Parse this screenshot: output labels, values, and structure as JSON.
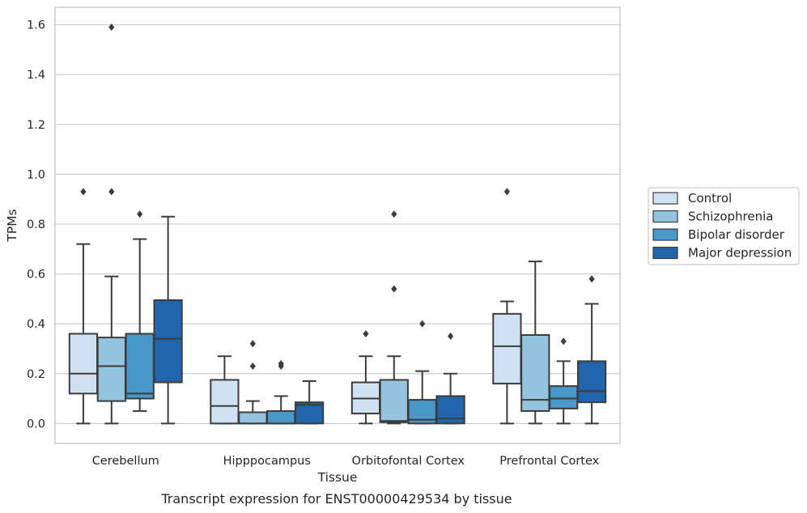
{
  "chart_data": {
    "type": "box",
    "xlabel": "Tissue",
    "ylabel": "TPMs",
    "caption": "Transcript expression for ENST00000429534 by tissue",
    "ylim": [
      -0.08,
      1.67
    ],
    "yticks": [
      "0.0",
      "0.2",
      "0.4",
      "0.6",
      "0.8",
      "1.0",
      "1.2",
      "1.4",
      "1.6"
    ],
    "grid": "horizontal",
    "legend_position": "right",
    "categories": [
      "Cerebellum",
      "Hipppocampus",
      "Orbitofontal Cortex",
      "Prefrontal Cortex"
    ],
    "series": [
      {
        "name": "Control",
        "color": "#d0e1f2",
        "boxes": [
          {
            "whislo": 0.0,
            "q1": 0.12,
            "med": 0.2,
            "q3": 0.36,
            "whishi": 0.72,
            "fliers": [
              0.93
            ]
          },
          {
            "whislo": 0.0,
            "q1": 0.0,
            "med": 0.07,
            "q3": 0.175,
            "whishi": 0.27,
            "fliers": []
          },
          {
            "whislo": 0.0,
            "q1": 0.04,
            "med": 0.1,
            "q3": 0.165,
            "whishi": 0.27,
            "fliers": [
              0.36
            ]
          },
          {
            "whislo": 0.0,
            "q1": 0.16,
            "med": 0.31,
            "q3": 0.44,
            "whishi": 0.49,
            "fliers": [
              0.93
            ]
          }
        ]
      },
      {
        "name": "Schizophrenia",
        "color": "#94c4df",
        "boxes": [
          {
            "whislo": 0.0,
            "q1": 0.09,
            "med": 0.23,
            "q3": 0.345,
            "whishi": 0.59,
            "fliers": [
              1.59,
              0.93
            ]
          },
          {
            "whislo": 0.0,
            "q1": 0.0,
            "med": 0.0,
            "q3": 0.045,
            "whishi": 0.09,
            "fliers": [
              0.32,
              0.23
            ]
          },
          {
            "whislo": 0.0,
            "q1": 0.005,
            "med": 0.01,
            "q3": 0.175,
            "whishi": 0.27,
            "fliers": [
              0.84,
              0.54
            ]
          },
          {
            "whislo": 0.0,
            "q1": 0.05,
            "med": 0.095,
            "q3": 0.355,
            "whishi": 0.65,
            "fliers": []
          }
        ]
      },
      {
        "name": "Bipolar disorder",
        "color": "#4a98c9",
        "boxes": [
          {
            "whislo": 0.05,
            "q1": 0.1,
            "med": 0.12,
            "q3": 0.36,
            "whishi": 0.74,
            "fliers": [
              0.84
            ]
          },
          {
            "whislo": 0.0,
            "q1": 0.0,
            "med": 0.0,
            "q3": 0.05,
            "whishi": 0.11,
            "fliers": [
              0.24,
              0.23
            ]
          },
          {
            "whislo": 0.0,
            "q1": 0.0,
            "med": 0.015,
            "q3": 0.095,
            "whishi": 0.21,
            "fliers": [
              0.4
            ]
          },
          {
            "whislo": 0.0,
            "q1": 0.06,
            "med": 0.1,
            "q3": 0.15,
            "whishi": 0.25,
            "fliers": [
              0.33
            ]
          }
        ]
      },
      {
        "name": "Major depression",
        "color": "#2166ac",
        "boxes": [
          {
            "whislo": 0.0,
            "q1": 0.165,
            "med": 0.34,
            "q3": 0.495,
            "whishi": 0.83,
            "fliers": []
          },
          {
            "whislo": 0.0,
            "q1": 0.0,
            "med": 0.075,
            "q3": 0.085,
            "whishi": 0.17,
            "fliers": []
          },
          {
            "whislo": 0.0,
            "q1": 0.0,
            "med": 0.02,
            "q3": 0.11,
            "whishi": 0.2,
            "fliers": [
              0.35
            ]
          },
          {
            "whislo": 0.0,
            "q1": 0.085,
            "med": 0.13,
            "q3": 0.25,
            "whishi": 0.48,
            "fliers": [
              0.58
            ]
          }
        ]
      }
    ]
  },
  "colors": {
    "edge": "#3c3c3c",
    "grid": "#cfcfcf",
    "frame": "#cccccc"
  }
}
